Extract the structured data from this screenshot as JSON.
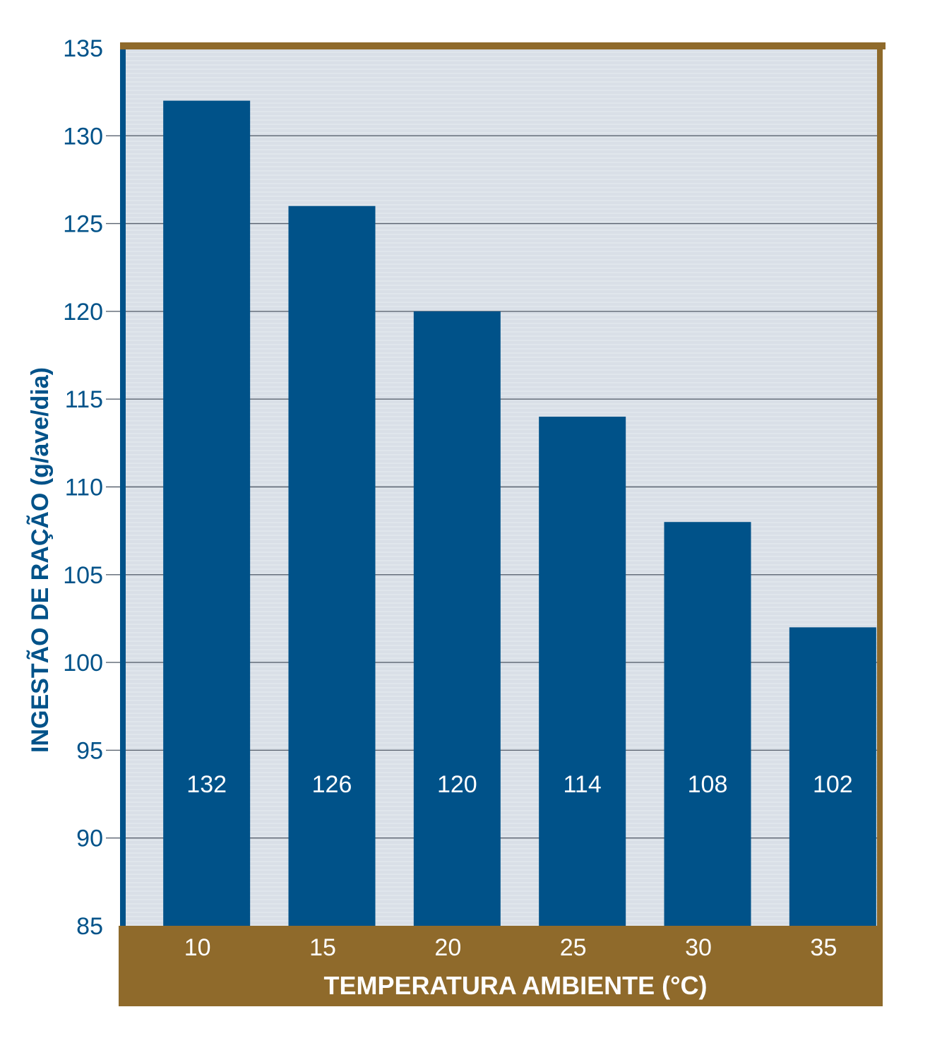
{
  "chart_data": {
    "type": "bar",
    "categories": [
      "10",
      "15",
      "20",
      "25",
      "30",
      "35"
    ],
    "values": [
      132,
      126,
      120,
      114,
      108,
      102
    ],
    "data_labels": [
      "132",
      "126",
      "120",
      "114",
      "108",
      "102"
    ],
    "title": "",
    "xlabel": "TEMPERATURA AMBIENTE (°C)",
    "ylabel": "INGESTÃO DE RAÇÃO (g/ave/dia)",
    "ylim": [
      85,
      135
    ],
    "yticks": [
      85,
      90,
      95,
      100,
      105,
      110,
      115,
      120,
      125,
      130,
      135
    ],
    "grid": true,
    "legend": "none"
  },
  "colors": {
    "bar": "#005289",
    "plot_background": "#d9dfe7",
    "frame": "#8f6a2b",
    "axis": "#005289",
    "tick_text": "#005289",
    "axis_title_y": "#005289",
    "x_band_text": "#ffffff",
    "data_label_text": "#ffffff",
    "gridline": "#5a6370"
  }
}
